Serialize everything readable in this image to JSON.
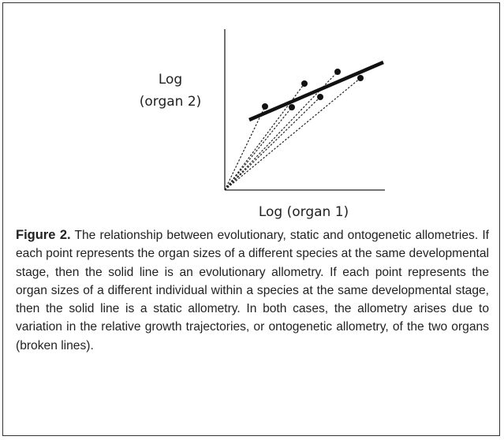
{
  "figure": {
    "y_label_line1": "Log",
    "y_label_line2": "(organ 2)",
    "x_label": "Log (organ 1)",
    "caption": {
      "label": "Figure 2.",
      "text": "The relationship between evolutionary, static and ontogenetic allometries. If each point represents the organ sizes of a different species at the same developmental stage, then the solid line is an evolutionary allometry. If each point represents the organ sizes of a different individual within a species at the same developmental stage, then the solid line is a static allometry. In both cases, the allometry arises due to variation in the relative growth trajectories, or ontogenetic allometry, of the two organs (broken lines)."
    }
  }
}
